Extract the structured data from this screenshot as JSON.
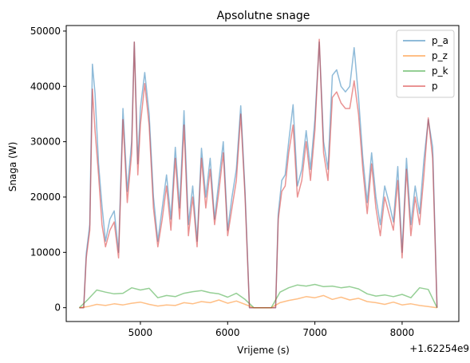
{
  "chart_data": {
    "type": "line",
    "title": "Apsolutne snage",
    "xlabel": "Vrijeme (s)",
    "ylabel": "Snaga (W)",
    "x_offset_label": "+1.62254e9",
    "xlim": [
      4150,
      8650
    ],
    "ylim": [
      -2500,
      51000
    ],
    "x_ticks": [
      5000,
      6000,
      7000,
      8000
    ],
    "x_tick_labels": [
      "5000",
      "6000",
      "7000",
      "8000"
    ],
    "y_ticks": [
      0,
      10000,
      20000,
      30000,
      40000,
      50000
    ],
    "y_tick_labels": [
      "0",
      "10000",
      "20000",
      "30000",
      "40000",
      "50000"
    ],
    "grid": false,
    "legend_position": "top-right",
    "series": [
      {
        "name": "p_a",
        "color": "#1f77b4",
        "alpha": 0.5,
        "x": [
          4300,
          4350,
          4380,
          4420,
          4450,
          4480,
          4520,
          4560,
          4600,
          4650,
          4700,
          4750,
          4800,
          4850,
          4900,
          4930,
          4970,
          5000,
          5050,
          5100,
          5150,
          5200,
          5250,
          5300,
          5350,
          5400,
          5450,
          5500,
          5550,
          5600,
          5650,
          5700,
          5750,
          5800,
          5850,
          5900,
          5950,
          6000,
          6050,
          6100,
          6150,
          6200,
          6250,
          6300,
          6350,
          6400,
          6450,
          6500,
          6550,
          6580,
          6620,
          6660,
          6700,
          6750,
          6800,
          6850,
          6900,
          6950,
          7000,
          7050,
          7100,
          7150,
          7200,
          7250,
          7300,
          7350,
          7400,
          7450,
          7500,
          7550,
          7600,
          7650,
          7700,
          7750,
          7800,
          7850,
          7900,
          7950,
          8000,
          8050,
          8100,
          8150,
          8200,
          8250,
          8300,
          8350,
          8400
        ],
        "y": [
          0,
          0,
          9800,
          15000,
          44000,
          38700,
          26000,
          18400,
          12000,
          16000,
          17500,
          10000,
          36000,
          21000,
          30000,
          48000,
          26000,
          36000,
          42500,
          35000,
          20000,
          12000,
          18000,
          24000,
          16000,
          29000,
          18000,
          35600,
          15000,
          22000,
          12000,
          28800,
          20000,
          27000,
          16000,
          23000,
          30000,
          14000,
          20000,
          25000,
          36500,
          21000,
          0,
          0,
          0,
          0,
          0,
          0,
          0,
          17000,
          23000,
          24000,
          30000,
          36700,
          22000,
          25000,
          32000,
          25000,
          34000,
          48000,
          30000,
          25000,
          42000,
          43000,
          40000,
          39000,
          40000,
          47000,
          38000,
          27000,
          19000,
          28000,
          20000,
          15000,
          22000,
          19000,
          15500,
          25500,
          10000,
          27000,
          15000,
          22000,
          17000,
          26800,
          34000,
          29000,
          0
        ]
      },
      {
        "name": "p_z",
        "color": "#ff7f0e",
        "alpha": 0.5,
        "x": [
          4300,
          4400,
          4500,
          4600,
          4700,
          4800,
          4900,
          5000,
          5100,
          5200,
          5300,
          5400,
          5500,
          5600,
          5700,
          5800,
          5900,
          6000,
          6100,
          6200,
          6300,
          6400,
          6500,
          6600,
          6700,
          6800,
          6900,
          7000,
          7100,
          7200,
          7300,
          7400,
          7500,
          7600,
          7700,
          7800,
          7900,
          8000,
          8100,
          8200,
          8300,
          8400
        ],
        "y": [
          0,
          200,
          600,
          400,
          700,
          500,
          800,
          1000,
          600,
          300,
          500,
          400,
          900,
          700,
          1100,
          900,
          1400,
          800,
          1200,
          600,
          0,
          0,
          0,
          900,
          1300,
          1600,
          2000,
          1800,
          2200,
          1500,
          1900,
          1400,
          1700,
          1100,
          900,
          600,
          1000,
          500,
          700,
          400,
          200,
          0
        ]
      },
      {
        "name": "p_k",
        "color": "#2ca02c",
        "alpha": 0.5,
        "x": [
          4300,
          4400,
          4500,
          4600,
          4700,
          4800,
          4900,
          5000,
          5100,
          5200,
          5300,
          5400,
          5500,
          5600,
          5700,
          5800,
          5900,
          6000,
          6100,
          6200,
          6300,
          6400,
          6500,
          6600,
          6700,
          6800,
          6900,
          7000,
          7100,
          7200,
          7300,
          7400,
          7500,
          7600,
          7700,
          7800,
          7900,
          8000,
          8100,
          8200,
          8300,
          8400
        ],
        "y": [
          0,
          1500,
          3200,
          2800,
          2500,
          2600,
          3600,
          3200,
          3500,
          1800,
          2200,
          2000,
          2600,
          2900,
          3100,
          2700,
          2500,
          1900,
          2600,
          1500,
          0,
          0,
          0,
          2800,
          3600,
          4100,
          3900,
          4200,
          3800,
          3900,
          3600,
          3800,
          3400,
          2500,
          2100,
          2300,
          2000,
          2400,
          1800,
          3600,
          3300,
          0
        ]
      },
      {
        "name": "p",
        "color": "#d62728",
        "alpha": 0.5,
        "x": [
          4300,
          4350,
          4380,
          4420,
          4450,
          4480,
          4520,
          4560,
          4600,
          4650,
          4700,
          4750,
          4800,
          4850,
          4900,
          4930,
          4970,
          5000,
          5050,
          5100,
          5150,
          5200,
          5250,
          5300,
          5350,
          5400,
          5450,
          5500,
          5550,
          5600,
          5650,
          5700,
          5750,
          5800,
          5850,
          5900,
          5950,
          6000,
          6050,
          6100,
          6150,
          6200,
          6250,
          6300,
          6350,
          6400,
          6450,
          6500,
          6550,
          6580,
          6620,
          6660,
          6700,
          6750,
          6800,
          6850,
          6900,
          6950,
          7000,
          7050,
          7100,
          7150,
          7200,
          7250,
          7300,
          7350,
          7400,
          7450,
          7500,
          7550,
          7600,
          7650,
          7700,
          7750,
          7800,
          7850,
          7900,
          7950,
          8000,
          8050,
          8100,
          8150,
          8200,
          8250,
          8300,
          8350,
          8400
        ],
        "y": [
          0,
          0,
          9000,
          14000,
          39500,
          32000,
          24000,
          15000,
          11000,
          14000,
          15500,
          9000,
          34000,
          19000,
          28000,
          48000,
          24000,
          33000,
          40500,
          33000,
          18000,
          11000,
          16000,
          22000,
          14000,
          27000,
          16000,
          33000,
          13000,
          20000,
          11000,
          27000,
          18000,
          25000,
          15000,
          21000,
          28000,
          13000,
          18000,
          23000,
          35000,
          20000,
          0,
          0,
          0,
          0,
          0,
          0,
          0,
          16000,
          21000,
          22000,
          28000,
          33000,
          20000,
          23000,
          30000,
          23000,
          32000,
          48500,
          28000,
          23000,
          38000,
          39000,
          37000,
          36000,
          36000,
          41000,
          35000,
          25000,
          17000,
          26000,
          18000,
          13000,
          20000,
          17000,
          14000,
          23000,
          9000,
          25000,
          13000,
          20000,
          15000,
          24000,
          34300,
          27000,
          0
        ]
      }
    ]
  }
}
